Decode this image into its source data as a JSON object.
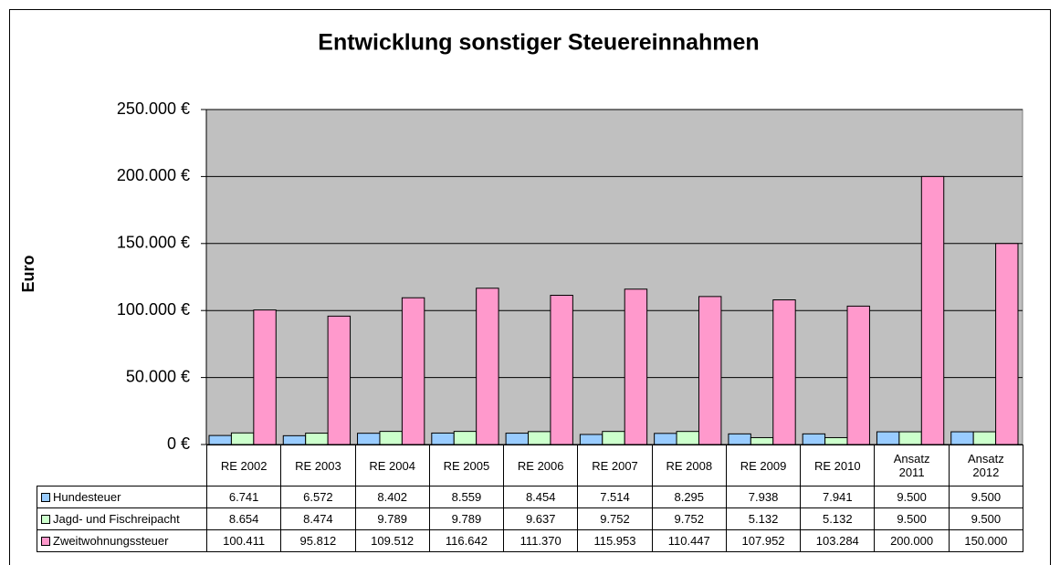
{
  "chart_data": {
    "type": "bar",
    "title": "Entwicklung sonstiger Steuereinnahmen",
    "y_label": "Euro",
    "categories": [
      "RE 2002",
      "RE 2003",
      "RE 2004",
      "RE 2005",
      "RE 2006",
      "RE 2007",
      "RE 2008",
      "RE 2009",
      "RE 2010",
      "Ansatz\n2011",
      "Ansatz\n2012"
    ],
    "series": [
      {
        "name": "Hundesteuer",
        "color": "#99ccff",
        "values": [
          6741,
          6572,
          8402,
          8559,
          8454,
          7514,
          8295,
          7938,
          7941,
          9500,
          9500
        ],
        "value_labels": [
          "6.741",
          "6.572",
          "8.402",
          "8.559",
          "8.454",
          "7.514",
          "8.295",
          "7.938",
          "7.941",
          "9.500",
          "9.500"
        ]
      },
      {
        "name": "Jagd- und Fischreipacht",
        "color": "#ccffcc",
        "values": [
          8654,
          8474,
          9789,
          9789,
          9637,
          9752,
          9752,
          5132,
          5132,
          9500,
          9500
        ],
        "value_labels": [
          "8.654",
          "8.474",
          "9.789",
          "9.789",
          "9.637",
          "9.752",
          "9.752",
          "5.132",
          "5.132",
          "9.500",
          "9.500"
        ]
      },
      {
        "name": "Zweitwohnungssteuer",
        "color": "#ff99cc",
        "values": [
          100411,
          95812,
          109512,
          116642,
          111370,
          115953,
          110447,
          107952,
          103284,
          200000,
          150000
        ],
        "value_labels": [
          "100.411",
          "95.812",
          "109.512",
          "116.642",
          "111.370",
          "115.953",
          "110.447",
          "107.952",
          "103.284",
          "200.000",
          "150.000"
        ]
      }
    ],
    "ylim": [
      0,
      250000
    ],
    "yticks": [
      {
        "value": 0,
        "label": "0 €"
      },
      {
        "value": 50000,
        "label": "50.000 €"
      },
      {
        "value": 100000,
        "label": "100.000 €"
      },
      {
        "value": 150000,
        "label": "150.000 €"
      },
      {
        "value": 200000,
        "label": "200.000 €"
      },
      {
        "value": 250000,
        "label": "250.000 €"
      }
    ],
    "grid": true,
    "plot_color": "#c0c0c0"
  }
}
